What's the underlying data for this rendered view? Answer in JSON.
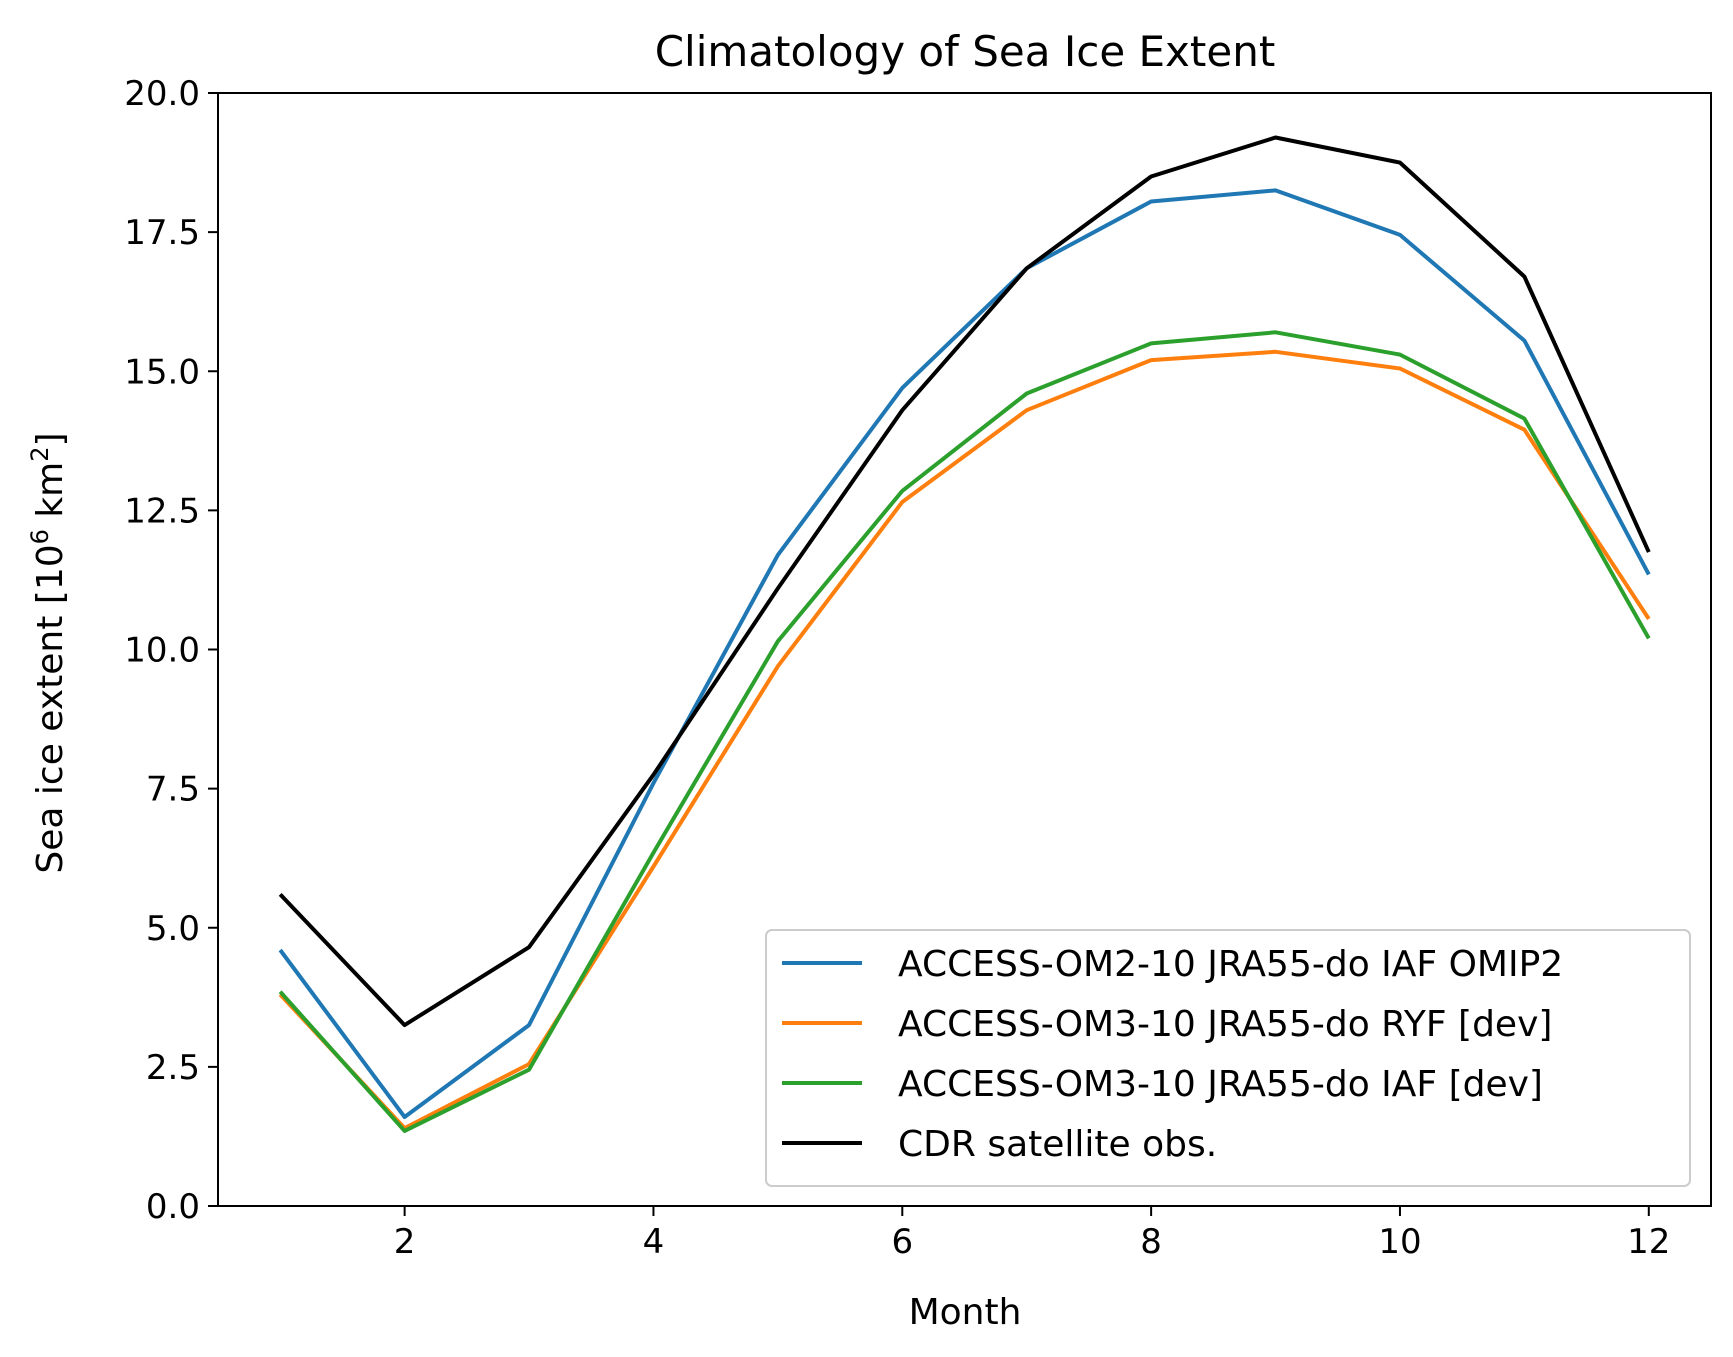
{
  "chart_data": {
    "type": "line",
    "title": "Climatology of Sea Ice Extent",
    "xlabel": "Month",
    "ylabel": "Sea ice extent [10",
    "ylabel_sup1": "6",
    "ylabel_mid": " km",
    "ylabel_sup2": "2",
    "ylabel_end": "]",
    "xlim": [
      0.5,
      12.5
    ],
    "ylim": [
      0,
      20
    ],
    "xticks": [
      2,
      4,
      6,
      8,
      10,
      12
    ],
    "yticks": [
      0,
      2.5,
      5,
      7.5,
      10,
      12.5,
      15,
      17.5,
      20
    ],
    "ytick_labels": [
      "0.0",
      "2.5",
      "5.0",
      "7.5",
      "10.0",
      "12.5",
      "15.0",
      "17.5",
      "20.0"
    ],
    "grid": false,
    "legend_position": "lower-right",
    "x": [
      1,
      2,
      3,
      4,
      5,
      6,
      7,
      8,
      9,
      10,
      11,
      12
    ],
    "series": [
      {
        "name": "ACCESS-OM2-10 JRA55-do IAF OMIP2",
        "color": "#1f77b4",
        "values": [
          4.6,
          1.6,
          3.25,
          7.6,
          11.7,
          14.7,
          16.85,
          18.05,
          18.25,
          17.45,
          15.55,
          11.35
        ]
      },
      {
        "name": "ACCESS-OM3-10 JRA55-do RYF [dev]",
        "color": "#ff7f0e",
        "values": [
          3.8,
          1.4,
          2.55,
          6.1,
          9.7,
          12.65,
          14.3,
          15.2,
          15.35,
          15.05,
          13.95,
          10.55
        ]
      },
      {
        "name": "ACCESS-OM3-10 JRA55-do IAF [dev]",
        "color": "#2ca02c",
        "values": [
          3.85,
          1.35,
          2.45,
          6.35,
          10.15,
          12.85,
          14.6,
          15.5,
          15.7,
          15.3,
          14.15,
          10.2
        ]
      },
      {
        "name": "CDR satellite obs.",
        "color": "#000000",
        "values": [
          5.6,
          3.25,
          4.65,
          7.75,
          11.1,
          14.3,
          16.85,
          18.5,
          19.2,
          18.75,
          16.7,
          11.75
        ]
      }
    ]
  }
}
